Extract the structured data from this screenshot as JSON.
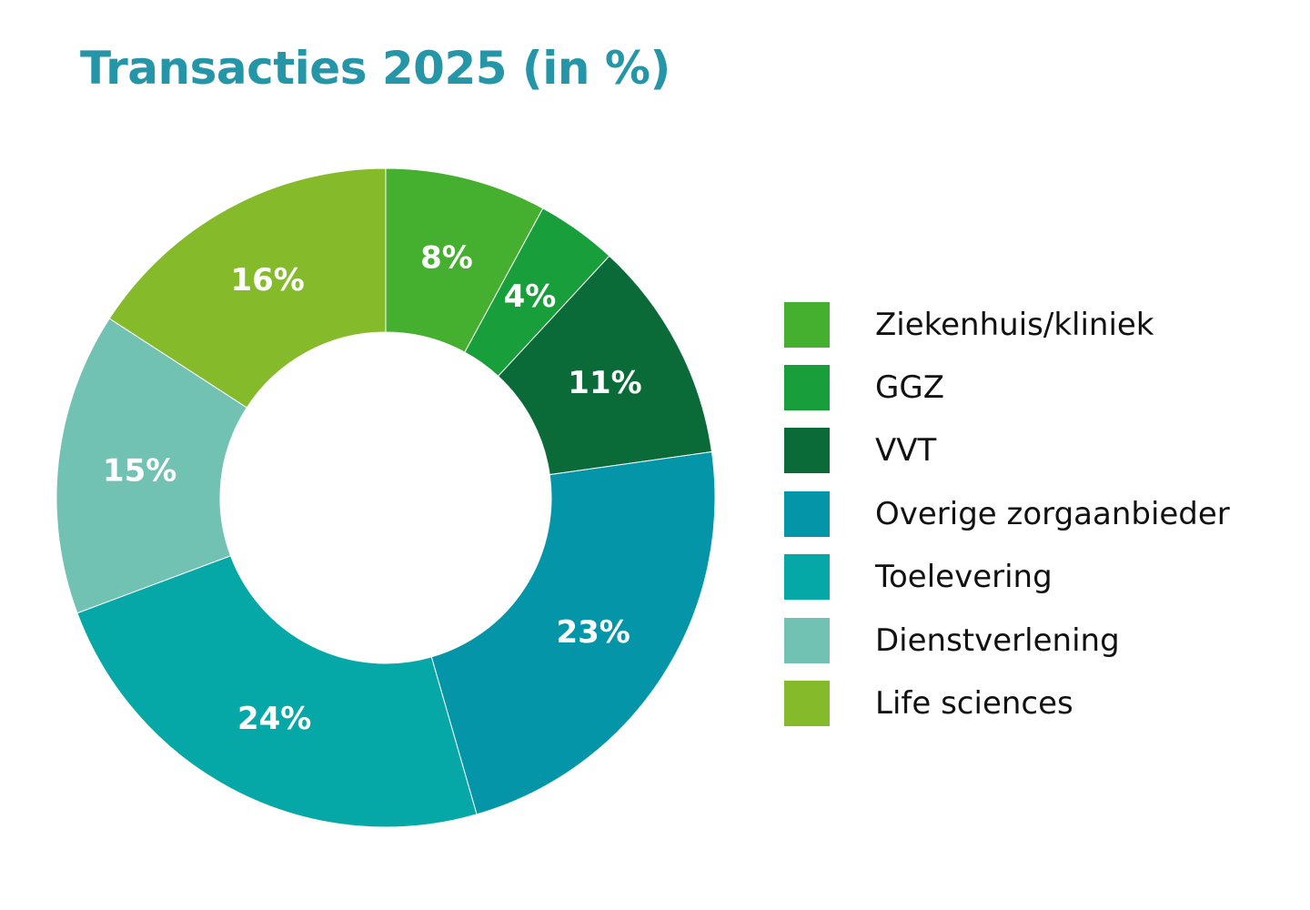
{
  "chart_data": {
    "type": "pie",
    "title": "Transacties 2025 (in %)",
    "legend_position": "right",
    "series": [
      {
        "name": "Ziekenhuis/kliniek",
        "value": 8,
        "label": "8%",
        "color": "#45b02f"
      },
      {
        "name": "GGZ",
        "value": 4,
        "label": "4%",
        "color": "#189e3b"
      },
      {
        "name": "VVT",
        "value": 11,
        "label": "11%",
        "color": "#0b6b38"
      },
      {
        "name": "Overige zorgaanbieder",
        "value": 23,
        "label": "23%",
        "color": "#0496a8"
      },
      {
        "name": "Toelevering",
        "value": 24,
        "label": "24%",
        "color": "#05a8a6"
      },
      {
        "name": "Dienstverlening",
        "value": 15,
        "label": "15%",
        "color": "#72c2b3"
      },
      {
        "name": "Life sciences",
        "value": 16,
        "label": "16%",
        "color": "#85bb2a"
      }
    ]
  }
}
